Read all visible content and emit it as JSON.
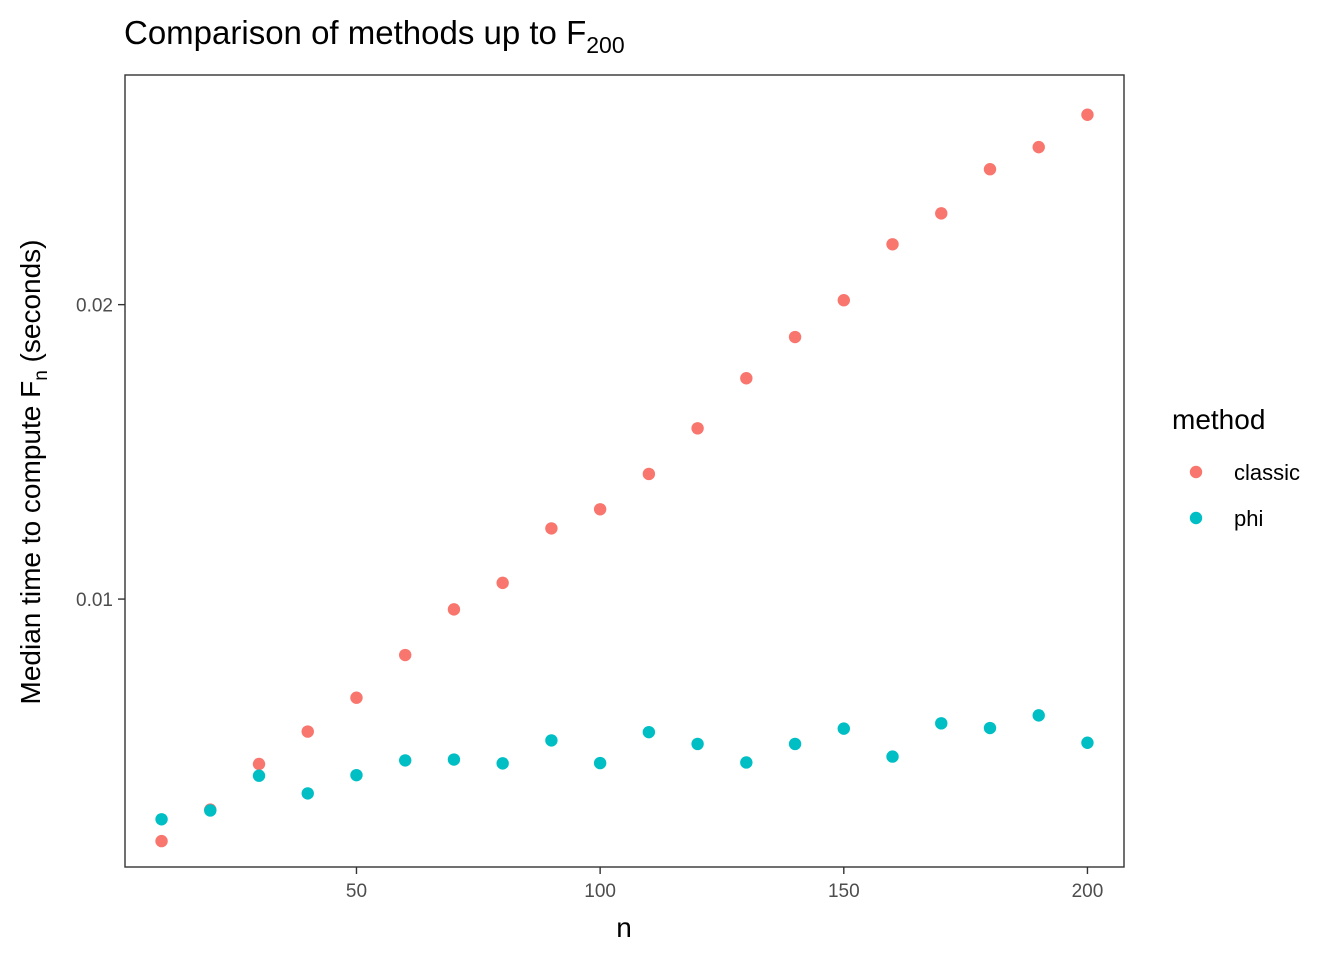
{
  "chart_data": {
    "type": "scatter",
    "title": "Comparison of methods up to F",
    "title_subscript": "200",
    "xlabel": "n",
    "ylabel_prefix": "Median time to compute F",
    "ylabel_subscript": "n",
    "ylabel_suffix": " (seconds)",
    "xlim": [
      2.5,
      207.5
    ],
    "ylim": [
      0.0009,
      0.0278
    ],
    "x_ticks": [
      50,
      100,
      150,
      200
    ],
    "x_tick_labels": [
      "50",
      "100",
      "150",
      "200"
    ],
    "y_ticks": [
      0.01,
      0.02
    ],
    "y_tick_labels": [
      "0.01",
      "0.02"
    ],
    "grid": false,
    "legend": {
      "title": "method",
      "position": "right"
    },
    "x": [
      10,
      20,
      30,
      40,
      50,
      60,
      70,
      80,
      90,
      100,
      110,
      120,
      130,
      140,
      150,
      160,
      170,
      180,
      190,
      200
    ],
    "series": [
      {
        "name": "classic",
        "color": "#F8766D",
        "values": [
          0.00178,
          0.00285,
          0.0044,
          0.0055,
          0.00665,
          0.0081,
          0.00965,
          0.01055,
          0.0124,
          0.01305,
          0.01425,
          0.0158,
          0.0175,
          0.0189,
          0.02015,
          0.02205,
          0.0231,
          0.0246,
          0.02535,
          0.02645
        ]
      },
      {
        "name": "phi",
        "color": "#00BFC4",
        "values": [
          0.00252,
          0.00282,
          0.004,
          0.0034,
          0.00402,
          0.00452,
          0.00455,
          0.00442,
          0.0052,
          0.00443,
          0.00548,
          0.00508,
          0.00445,
          0.00508,
          0.0056,
          0.00465,
          0.00578,
          0.00562,
          0.00605,
          0.00512
        ]
      }
    ]
  }
}
